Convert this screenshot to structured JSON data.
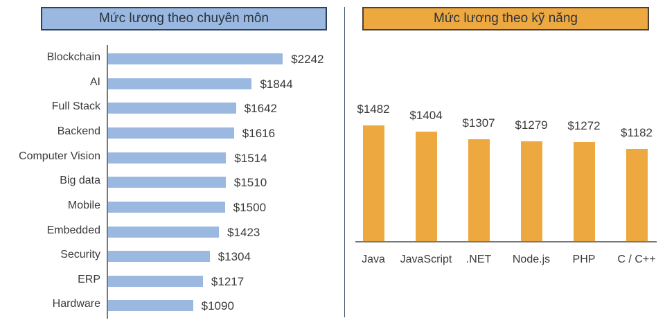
{
  "left_panel": {
    "title": "Mức lương theo chuyên môn",
    "bar_color": "#9ab8e0",
    "title_bg": "#9ab8e0"
  },
  "right_panel": {
    "title": "Mức lương theo kỹ năng",
    "bar_color": "#eea840",
    "title_bg": "#eea840"
  },
  "chart_data": [
    {
      "type": "bar",
      "orientation": "horizontal",
      "title": "Mức lương theo chuyên môn",
      "xlabel": "",
      "ylabel": "",
      "categories": [
        "Blockchain",
        "AI",
        "Full Stack",
        "Backend",
        "Computer Vision",
        "Big data",
        "Mobile",
        "Embedded",
        "Security",
        "ERP",
        "Hardware"
      ],
      "values": [
        2242,
        1844,
        1642,
        1616,
        1514,
        1510,
        1500,
        1423,
        1304,
        1217,
        1090
      ],
      "value_labels": [
        "$2242",
        "$1844",
        "$1642",
        "$1616",
        "$1514",
        "$1510",
        "$1500",
        "$1423",
        "$1304",
        "$1217",
        "$1090"
      ],
      "grid": false,
      "legend": null
    },
    {
      "type": "bar",
      "orientation": "vertical",
      "title": "Mức lương theo kỹ năng",
      "xlabel": "",
      "ylabel": "",
      "categories": [
        "Java",
        "JavaScript",
        ".NET",
        "Node.js",
        "PHP",
        "C / C++"
      ],
      "values": [
        1482,
        1404,
        1307,
        1279,
        1272,
        1182
      ],
      "value_labels": [
        "$1482",
        "$1404",
        "$1307",
        "$1279",
        "$1272",
        "$1182"
      ],
      "grid": false,
      "legend": null
    }
  ]
}
